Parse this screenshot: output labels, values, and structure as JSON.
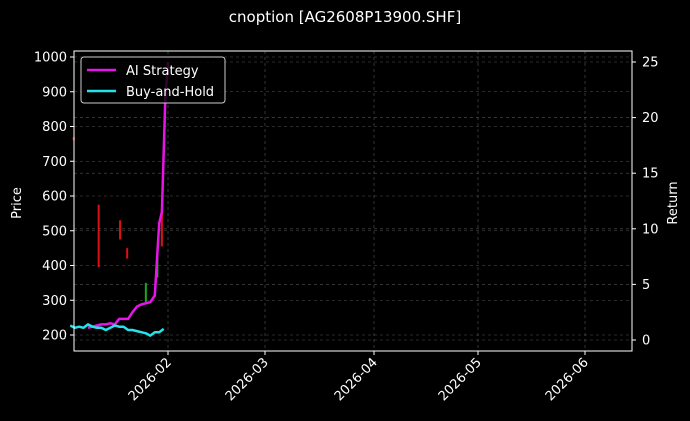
{
  "title": "cnoption [AG2608P13900.SHF]",
  "colors": {
    "background": "#000000",
    "axes": "#ffffff",
    "grid": "#555555",
    "ai_strategy": "#e815e8",
    "buy_and_hold": "#26e0ea",
    "sell_signal": "#e01010",
    "buy_signal": "#1aa81a"
  },
  "legend": {
    "items": [
      {
        "label": "AI Strategy",
        "color": "#e815e8"
      },
      {
        "label": "Buy-and-Hold",
        "color": "#26e0ea"
      }
    ]
  },
  "chart_data": {
    "type": "line",
    "title": "cnoption [AG2608P13900.SHF]",
    "xlabel": "",
    "ylabel": "Price",
    "y2label": "Return",
    "x_ticks": [
      "2026-02",
      "2026-03",
      "2026-04",
      "2026-05",
      "2026-06"
    ],
    "y_ticks": [
      200,
      300,
      400,
      500,
      600,
      700,
      800,
      900,
      1000
    ],
    "y2_ticks": [
      0,
      5,
      10,
      15,
      20,
      25
    ],
    "ylim": [
      150,
      1015
    ],
    "y2lim": [
      -0.8,
      25.9
    ],
    "grid": true,
    "legend_position": "upper left",
    "series": [
      {
        "name": "AI Strategy",
        "axis": "return",
        "points": [
          [
            0.0,
            1.1
          ],
          [
            0.5,
            1.2
          ],
          [
            1.0,
            1.3
          ],
          [
            1.5,
            1.4
          ],
          [
            2.0,
            1.4
          ],
          [
            2.5,
            1.5
          ],
          [
            3.0,
            1.4
          ],
          [
            3.5,
            1.9
          ],
          [
            4.0,
            1.9
          ],
          [
            4.5,
            1.9
          ],
          [
            5.0,
            2.5
          ],
          [
            5.5,
            3.0
          ],
          [
            6.0,
            3.2
          ],
          [
            6.5,
            3.3
          ],
          [
            7.0,
            3.4
          ],
          [
            7.5,
            4.0
          ],
          [
            8.0,
            10.5
          ],
          [
            8.3,
            11.5
          ],
          [
            8.7,
            22.0
          ],
          [
            9.0,
            25.0
          ]
        ]
      },
      {
        "name": "Buy-and-Hold",
        "axis": "return",
        "points": [
          [
            -2.0,
            1.3
          ],
          [
            -1.5,
            1.1
          ],
          [
            -1.0,
            1.2
          ],
          [
            -0.5,
            1.1
          ],
          [
            0.0,
            1.4
          ],
          [
            0.5,
            1.2
          ],
          [
            1.0,
            1.1
          ],
          [
            1.5,
            1.1
          ],
          [
            2.0,
            0.9
          ],
          [
            2.5,
            1.1
          ],
          [
            3.0,
            1.3
          ],
          [
            3.5,
            1.2
          ],
          [
            4.0,
            1.2
          ],
          [
            4.5,
            0.9
          ],
          [
            5.0,
            0.9
          ],
          [
            5.5,
            0.8
          ],
          [
            6.0,
            0.7
          ],
          [
            6.5,
            0.6
          ],
          [
            7.0,
            0.4
          ],
          [
            7.5,
            0.7
          ],
          [
            8.0,
            0.7
          ],
          [
            8.5,
            1.0
          ]
        ]
      }
    ],
    "candles": [
      {
        "day": -1.6,
        "low": 760,
        "high": 770,
        "color": "red"
      },
      {
        "day": 1.2,
        "low": 395,
        "high": 575,
        "color": "red"
      },
      {
        "day": 3.6,
        "low": 475,
        "high": 530,
        "color": "red"
      },
      {
        "day": 4.4,
        "low": 420,
        "high": 450,
        "color": "red"
      },
      {
        "day": 6.5,
        "low": 295,
        "high": 350,
        "color": "green"
      },
      {
        "day": 7.8,
        "low": 365,
        "high": 440,
        "color": "green"
      },
      {
        "day": 8.3,
        "low": 455,
        "high": 565,
        "color": "red"
      }
    ]
  }
}
